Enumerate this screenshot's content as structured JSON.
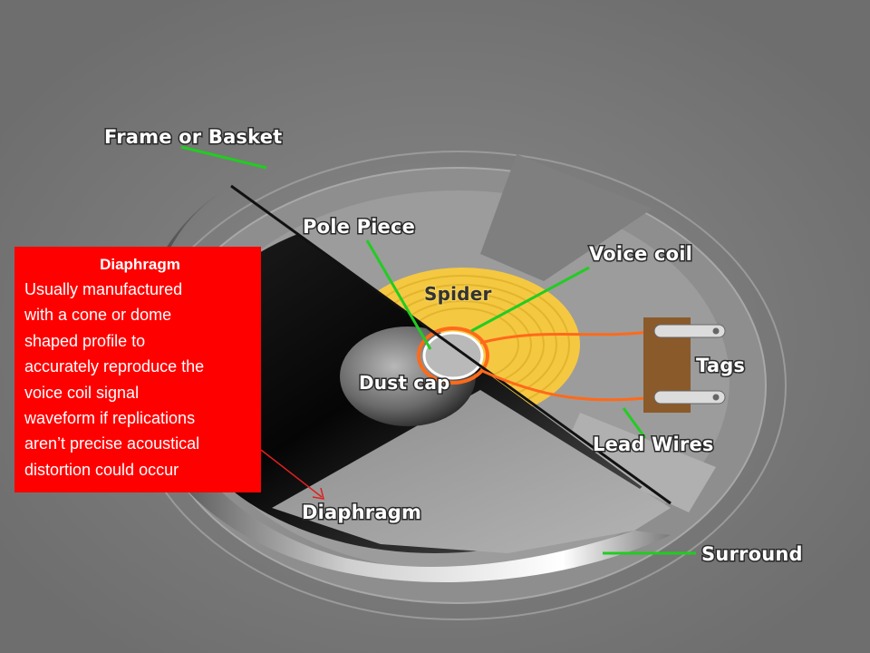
{
  "labels": {
    "frame": "Frame or Basket",
    "pole_piece": "Pole Piece",
    "voice_coil": "Voice coil",
    "spider": "Spider",
    "dust_cap": "Dust cap",
    "tags": "Tags",
    "lead_wires": "Lead Wires",
    "diaphragm": "Diaphragm",
    "surround": "Surround"
  },
  "callout": {
    "title": "Diaphragm",
    "lines": [
      "Usually manufactured",
      "with a cone or dome",
      "shaped profile to",
      "accurately reproduce the",
      "voice coil signal",
      "waveform if replications",
      "aren’t precise acoustical",
      "distortion could occur"
    ]
  },
  "colors": {
    "background": "#7a7a7a",
    "callout_bg": "#ff0000",
    "leader_line": "#22cc22",
    "spider": "#f5c842",
    "wire": "#ff6a1a",
    "tag_block": "#8b5a2b"
  }
}
